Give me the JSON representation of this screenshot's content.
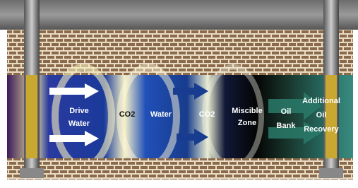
{
  "labels": [
    {
      "lines": [
        "Drive",
        "Water"
      ]
    },
    {
      "lines": [
        "CO2"
      ]
    },
    {
      "lines": [
        "Water"
      ]
    },
    {
      "lines": [
        "CO2"
      ]
    },
    {
      "lines": [
        "Miscible",
        "Zone"
      ]
    },
    {
      "lines": [
        "Oil",
        "Bank"
      ]
    },
    {
      "lines": [
        "Additional",
        "Oil",
        "Recovery"
      ]
    }
  ]
}
